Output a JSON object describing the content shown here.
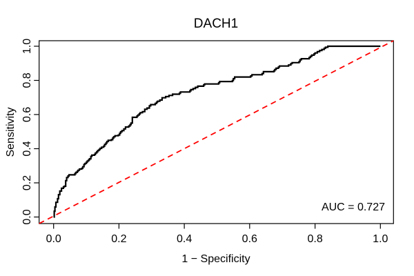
{
  "annotation": {
    "auc_label": "AUC = 0.727"
  },
  "colors": {
    "curve": "#000000",
    "diagonal": "#FF0000",
    "axis": "#000000",
    "background": "#FFFFFF"
  },
  "chart_data": {
    "type": "line",
    "title": "DACH1",
    "xlabel": "1 − Specificity",
    "ylabel": "Sensitivity",
    "xlim": [
      0,
      1
    ],
    "ylim": [
      0,
      1
    ],
    "grid": false,
    "legend": "none",
    "auc": 0.727,
    "x_tick_labels": [
      "0.0",
      "0.2",
      "0.4",
      "0.6",
      "0.8",
      "1.0"
    ],
    "y_tick_labels": [
      "0.0",
      "0.2",
      "0.4",
      "0.6",
      "0.8",
      "1.0"
    ],
    "series": [
      {
        "name": "ROC curve",
        "style": "step-solid",
        "color": "#000000",
        "points": [
          [
            0.0,
            0.0
          ],
          [
            0.002,
            0.034
          ],
          [
            0.004,
            0.059
          ],
          [
            0.007,
            0.086
          ],
          [
            0.012,
            0.107
          ],
          [
            0.015,
            0.131
          ],
          [
            0.019,
            0.152
          ],
          [
            0.024,
            0.168
          ],
          [
            0.03,
            0.176
          ],
          [
            0.033,
            0.18
          ],
          [
            0.037,
            0.213
          ],
          [
            0.04,
            0.231
          ],
          [
            0.044,
            0.24
          ],
          [
            0.047,
            0.247
          ],
          [
            0.065,
            0.254
          ],
          [
            0.068,
            0.261
          ],
          [
            0.072,
            0.267
          ],
          [
            0.075,
            0.274
          ],
          [
            0.079,
            0.281
          ],
          [
            0.086,
            0.285
          ],
          [
            0.089,
            0.294
          ],
          [
            0.093,
            0.308
          ],
          [
            0.096,
            0.314
          ],
          [
            0.1,
            0.321
          ],
          [
            0.103,
            0.328
          ],
          [
            0.107,
            0.335
          ],
          [
            0.11,
            0.341
          ],
          [
            0.114,
            0.355
          ],
          [
            0.117,
            0.362
          ],
          [
            0.125,
            0.366
          ],
          [
            0.128,
            0.375
          ],
          [
            0.132,
            0.382
          ],
          [
            0.135,
            0.389
          ],
          [
            0.139,
            0.395
          ],
          [
            0.142,
            0.402
          ],
          [
            0.147,
            0.409
          ],
          [
            0.153,
            0.415
          ],
          [
            0.156,
            0.425
          ],
          [
            0.16,
            0.433
          ],
          [
            0.163,
            0.442
          ],
          [
            0.167,
            0.449
          ],
          [
            0.177,
            0.453
          ],
          [
            0.181,
            0.463
          ],
          [
            0.184,
            0.47
          ],
          [
            0.188,
            0.476
          ],
          [
            0.198,
            0.48
          ],
          [
            0.202,
            0.49
          ],
          [
            0.205,
            0.499
          ],
          [
            0.209,
            0.506
          ],
          [
            0.215,
            0.516
          ],
          [
            0.22,
            0.527
          ],
          [
            0.23,
            0.533
          ],
          [
            0.234,
            0.541
          ],
          [
            0.237,
            0.55
          ],
          [
            0.241,
            0.584
          ],
          [
            0.255,
            0.591
          ],
          [
            0.258,
            0.597
          ],
          [
            0.262,
            0.604
          ],
          [
            0.265,
            0.611
          ],
          [
            0.272,
            0.617
          ],
          [
            0.279,
            0.631
          ],
          [
            0.286,
            0.638
          ],
          [
            0.293,
            0.651
          ],
          [
            0.297,
            0.658
          ],
          [
            0.311,
            0.665
          ],
          [
            0.315,
            0.672
          ],
          [
            0.318,
            0.678
          ],
          [
            0.325,
            0.685
          ],
          [
            0.332,
            0.698
          ],
          [
            0.343,
            0.705
          ],
          [
            0.353,
            0.712
          ],
          [
            0.364,
            0.719
          ],
          [
            0.385,
            0.725
          ],
          [
            0.388,
            0.732
          ],
          [
            0.417,
            0.739
          ],
          [
            0.42,
            0.746
          ],
          [
            0.427,
            0.752
          ],
          [
            0.434,
            0.759
          ],
          [
            0.441,
            0.766
          ],
          [
            0.459,
            0.773
          ],
          [
            0.462,
            0.779
          ],
          [
            0.505,
            0.786
          ],
          [
            0.508,
            0.793
          ],
          [
            0.547,
            0.799
          ],
          [
            0.55,
            0.81
          ],
          [
            0.554,
            0.82
          ],
          [
            0.603,
            0.826
          ],
          [
            0.607,
            0.833
          ],
          [
            0.638,
            0.84
          ],
          [
            0.642,
            0.851
          ],
          [
            0.674,
            0.856
          ],
          [
            0.677,
            0.864
          ],
          [
            0.681,
            0.871
          ],
          [
            0.688,
            0.878
          ],
          [
            0.691,
            0.884
          ],
          [
            0.719,
            0.89
          ],
          [
            0.726,
            0.898
          ],
          [
            0.73,
            0.904
          ],
          [
            0.751,
            0.91
          ],
          [
            0.754,
            0.921
          ],
          [
            0.758,
            0.927
          ],
          [
            0.782,
            0.934
          ],
          [
            0.786,
            0.941
          ],
          [
            0.79,
            0.948
          ],
          [
            0.797,
            0.955
          ],
          [
            0.8,
            0.961
          ],
          [
            0.807,
            0.968
          ],
          [
            0.814,
            0.975
          ],
          [
            0.821,
            0.981
          ],
          [
            0.828,
            0.988
          ],
          [
            0.832,
            0.994
          ],
          [
            0.839,
            1.0
          ],
          [
            1.0,
            1.0
          ]
        ]
      },
      {
        "name": "chance diagonal",
        "style": "dashed",
        "color": "#FF0000",
        "points": [
          [
            0,
            0
          ],
          [
            1,
            1
          ]
        ]
      }
    ]
  }
}
